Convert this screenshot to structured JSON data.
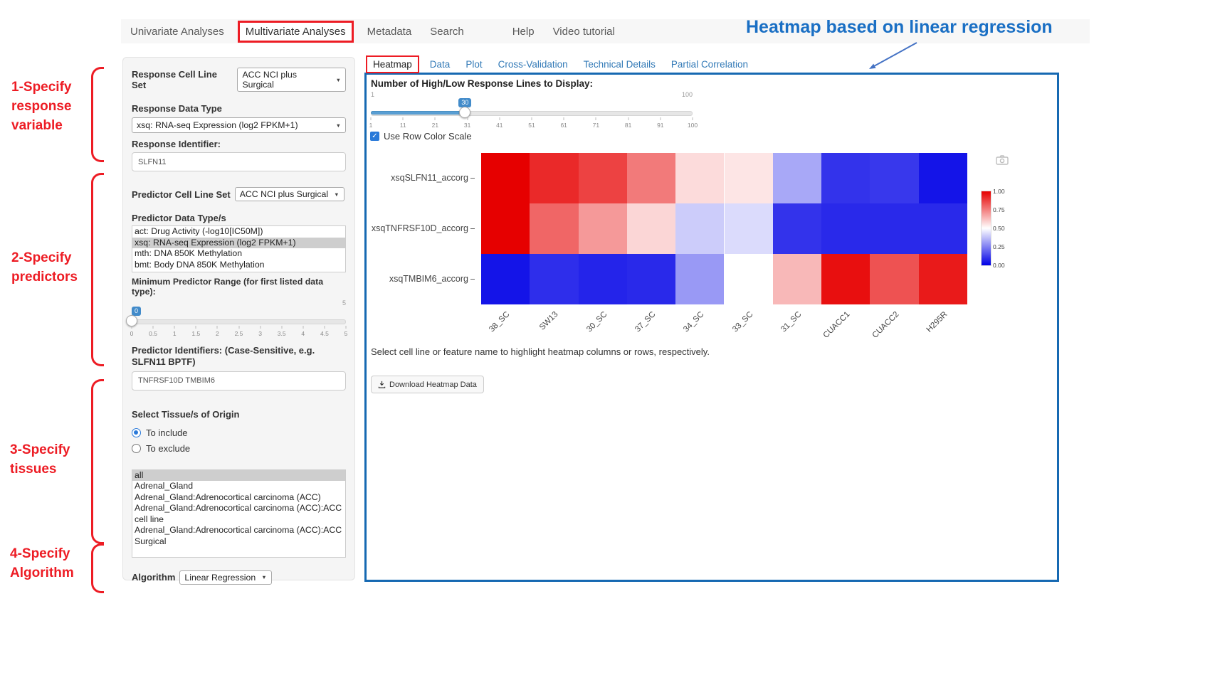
{
  "colors": {
    "annotation_red": "#ed1c24",
    "annotation_blue": "#1a6fc4",
    "panel_border_blue": "#1669b2",
    "link_blue": "#337ab7",
    "slider_blue": "#428bca",
    "heatmap_high": "#e60000",
    "heatmap_mid": "#ffffff",
    "heatmap_low": "#0000e6"
  },
  "icons": {
    "camera": "camera-icon",
    "download": "download-icon",
    "dropdown_caret_glyph": "▼",
    "checkbox_check_glyph": "✓"
  },
  "nav": {
    "items": [
      {
        "label": "Univariate Analyses",
        "active": false
      },
      {
        "label": "Multivariate Analyses",
        "active": true
      },
      {
        "label": "Metadata",
        "active": false
      },
      {
        "label": "Search",
        "active": false
      },
      {
        "label": "Help",
        "active": false
      },
      {
        "label": "Video tutorial",
        "active": false
      }
    ]
  },
  "annotations": {
    "title": "Heatmap based on linear regression",
    "steps": [
      "1-Specify\nresponse\nvariable",
      "2-Specify\npredictors",
      "3-Specify\ntissues",
      "4-Specify\nAlgorithm"
    ]
  },
  "sidebar": {
    "response_cell_line_set": {
      "label": "Response Cell Line Set",
      "value": "ACC NCI plus Surgical"
    },
    "response_data_type": {
      "label": "Response Data Type",
      "value": "xsq: RNA-seq Expression (log2 FPKM+1)"
    },
    "response_identifier": {
      "label": "Response Identifier:",
      "value": "SLFN11"
    },
    "predictor_cell_line_set": {
      "label": "Predictor Cell Line Set",
      "value": "ACC NCI plus Surgical"
    },
    "predictor_data_types": {
      "label": "Predictor Data Type/s",
      "options": [
        "act: Drug Activity (-log10[IC50M])",
        "xsq: RNA-seq Expression (log2 FPKM+1)",
        "mth: DNA 850K Methylation",
        "bmt: Body DNA 850K Methylation"
      ],
      "selected_index": 1
    },
    "min_predictor_range": {
      "label": "Minimum Predictor Range (for first listed data type):",
      "min": 0,
      "max": 5,
      "value": 0,
      "value_label": "0",
      "max_label": "5",
      "ticks": [
        "0",
        "0.5",
        "1",
        "1.5",
        "2",
        "2.5",
        "3",
        "3.5",
        "4",
        "4.5",
        "5"
      ]
    },
    "predictor_identifiers": {
      "label": "Predictor Identifiers: (Case-Sensitive, e.g. SLFN11 BPTF)",
      "value": "TNFRSF10D TMBIM6"
    },
    "tissue": {
      "label": "Select Tissue/s of Origin",
      "radios": [
        {
          "label": "To include",
          "checked": true
        },
        {
          "label": "To exclude",
          "checked": false
        }
      ],
      "options": [
        "all",
        "Adrenal_Gland",
        "Adrenal_Gland:Adrenocortical carcinoma (ACC)",
        "Adrenal_Gland:Adrenocortical carcinoma (ACC):ACC cell line",
        "Adrenal_Gland:Adrenocortical carcinoma (ACC):ACC Surgical"
      ],
      "selected_index": 0
    },
    "algorithm": {
      "label": "Algorithm",
      "value": "Linear Regression"
    }
  },
  "main": {
    "tabs": [
      {
        "label": "Heatmap",
        "active": true
      },
      {
        "label": "Data",
        "active": false
      },
      {
        "label": "Plot",
        "active": false
      },
      {
        "label": "Cross-Validation",
        "active": false
      },
      {
        "label": "Technical Details",
        "active": false
      },
      {
        "label": "Partial Correlation",
        "active": false
      }
    ],
    "lines_slider": {
      "label": "Number of High/Low Response Lines to Display:",
      "min": 1,
      "max": 100,
      "value": 30,
      "min_label": "1",
      "max_label": "100",
      "value_label": "30",
      "ticks": [
        "1",
        "11",
        "21",
        "31",
        "41",
        "51",
        "61",
        "71",
        "81",
        "91",
        "100"
      ]
    },
    "row_color_scale": {
      "label": "Use Row Color Scale",
      "checked": true
    },
    "note": "Select cell line or feature name to highlight heatmap columns or rows, respectively.",
    "download_button": "Download Heatmap Data"
  },
  "chart_data": {
    "type": "heatmap",
    "rows": [
      "xsqSLFN11_accorg",
      "xsqTNFRSF10D_accorg",
      "xsqTMBIM6_accorg"
    ],
    "columns": [
      "38_SC",
      "SW13",
      "30_SC",
      "37_SC",
      "34_SC",
      "33_SC",
      "31_SC",
      "CUACC1",
      "CUACC2",
      "H295R"
    ],
    "values": [
      [
        1.0,
        0.92,
        0.87,
        0.76,
        0.57,
        0.55,
        0.33,
        0.1,
        0.11,
        0.04
      ],
      [
        1.0,
        0.8,
        0.7,
        0.58,
        0.4,
        0.43,
        0.1,
        0.08,
        0.08,
        0.08
      ],
      [
        0.04,
        0.09,
        0.07,
        0.08,
        0.3,
        0.5,
        0.64,
        0.97,
        0.84,
        0.95
      ]
    ],
    "value_range": [
      0,
      1
    ],
    "colorbar": {
      "ticks": [
        "1.00",
        "0.75",
        "0.50",
        "0.25",
        "0.00"
      ],
      "high_color": "#e60000",
      "mid_color": "#ffffff",
      "low_color": "#0000e6"
    },
    "legend_position": "right",
    "title": ""
  }
}
